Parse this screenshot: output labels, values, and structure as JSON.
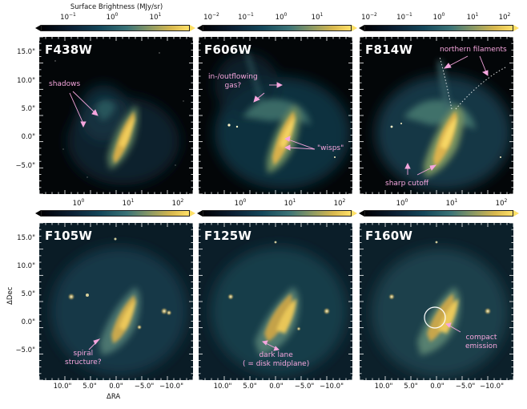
{
  "colorbars": {
    "title": "Surface Brightness (MJy/sr)",
    "f438w": [
      "10",
      "10",
      "10"
    ],
    "f438w_exp": [
      "−1",
      "0",
      "1"
    ],
    "f606w_exp": [
      "−2",
      "−1",
      "0",
      "1"
    ],
    "f814w_exp": [
      "−2",
      "−1",
      "0",
      "1",
      "2"
    ],
    "bottom_exp": [
      "0",
      "1",
      "2"
    ],
    "base": "10"
  },
  "panels": [
    {
      "filter": "F438W"
    },
    {
      "filter": "F606W"
    },
    {
      "filter": "F814W"
    },
    {
      "filter": "F105W"
    },
    {
      "filter": "F125W"
    },
    {
      "filter": "F160W"
    }
  ],
  "annotations": {
    "shadows": "shadows",
    "inflow": [
      "in-/outflowing",
      "gas?"
    ],
    "wisps": "\"wisps\"",
    "northern": "northern filaments",
    "sharp": "sharp cutoff",
    "spiral": [
      "spiral",
      "structure?"
    ],
    "darklane": [
      "dark lane",
      "( = disk midplane)"
    ],
    "compact": [
      "compact",
      "emission"
    ]
  },
  "axes": {
    "ylabel": "ΔDec",
    "xlabel": "ΔRA",
    "yticks_top": [
      "15.0\"",
      "10.0\"",
      "5.0\"",
      "0.0\"",
      "−5.0\""
    ],
    "yticks_bottom": [
      "15.0\"",
      "10.0\"",
      "5.0\"",
      "0.0\"",
      "−5.0\""
    ],
    "xticks": [
      "10.0\"",
      "5.0\"",
      "0.0\"",
      "−5.0\"",
      "−10.0\""
    ]
  },
  "colors": {
    "annotation": "#f6a6de",
    "background": "#030608",
    "emission": "#e8b84a"
  }
}
